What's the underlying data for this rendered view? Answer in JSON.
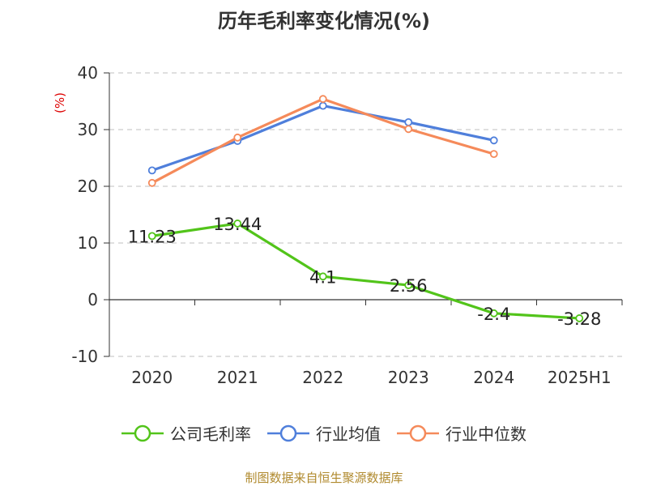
{
  "title": "历年毛利率变化情况(%)",
  "source": "制图数据来自恒生聚源数据库",
  "chart_data": {
    "type": "line",
    "title": "历年毛利率变化情况(%)",
    "ylabel": "(%)",
    "xlabel": "",
    "ylim": [
      -10,
      40
    ],
    "yticks": [
      -10,
      0,
      10,
      20,
      30,
      40
    ],
    "grid": "horizontal dashed",
    "legend_position": "bottom",
    "categories": [
      "2020",
      "2021",
      "2022",
      "2023",
      "2024",
      "2025H1"
    ],
    "series": [
      {
        "name": "公司毛利率",
        "color": "#52c41a",
        "values": [
          11.23,
          13.44,
          4.1,
          2.56,
          -2.4,
          -3.28
        ],
        "labels": [
          "11.23",
          "13.44",
          "4.1",
          "2.56",
          "-2.4",
          "-3.28"
        ],
        "show_labels": true
      },
      {
        "name": "行业均值",
        "color": "#4f7fdb",
        "values": [
          22.8,
          28.0,
          34.2,
          31.3,
          28.1,
          null
        ],
        "show_labels": false
      },
      {
        "name": "行业中位数",
        "color": "#f58a5a",
        "values": [
          20.6,
          28.6,
          35.4,
          30.1,
          25.7,
          null
        ],
        "show_labels": false
      }
    ]
  }
}
